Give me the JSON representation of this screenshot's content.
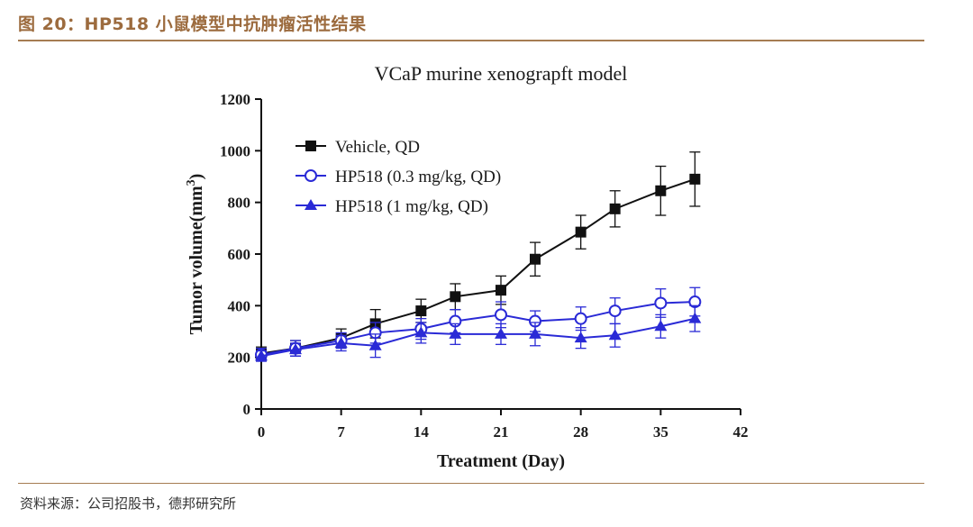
{
  "figure": {
    "title": "图 20：HP518 小鼠模型中抗肿瘤活性结果",
    "source": "资料来源：公司招股书，德邦研究所"
  },
  "colors": {
    "accent": "#9c6b3e",
    "vehicle": "#111111",
    "hp518": "#2a2ad6"
  },
  "chart_data": {
    "type": "line",
    "title": "VCaP murine xenograpft model",
    "xlabel": "Treatment (Day)",
    "ylabel": "Tumor volume(mm3)",
    "xlim": [
      0,
      42
    ],
    "ylim": [
      0,
      1200
    ],
    "xticks": [
      0,
      7,
      14,
      21,
      28,
      35,
      42
    ],
    "yticks": [
      0,
      200,
      400,
      600,
      800,
      1000,
      1200
    ],
    "legend_position": "top-left",
    "series": [
      {
        "name": "Vehicle,  QD",
        "marker": "filled-square",
        "x": [
          0,
          3,
          7,
          10,
          14,
          17,
          21,
          24,
          28,
          31,
          35,
          38
        ],
        "y": [
          215,
          235,
          275,
          330,
          380,
          435,
          460,
          580,
          685,
          775,
          845,
          890
        ],
        "err": [
          25,
          30,
          35,
          55,
          45,
          50,
          55,
          65,
          65,
          70,
          95,
          105
        ]
      },
      {
        "name": "HP518 (0.3 mg/kg, QD)",
        "marker": "open-circle",
        "x": [
          0,
          3,
          7,
          10,
          14,
          17,
          21,
          24,
          28,
          31,
          35,
          38
        ],
        "y": [
          210,
          235,
          265,
          295,
          310,
          340,
          365,
          340,
          350,
          380,
          410,
          415
        ],
        "err": [
          25,
          30,
          30,
          40,
          40,
          45,
          50,
          40,
          45,
          50,
          55,
          55
        ]
      },
      {
        "name": "HP518 (1 mg/kg, QD)",
        "marker": "filled-triangle",
        "x": [
          0,
          3,
          7,
          10,
          14,
          17,
          21,
          24,
          28,
          31,
          35,
          38
        ],
        "y": [
          205,
          230,
          255,
          245,
          295,
          290,
          290,
          290,
          275,
          285,
          320,
          350
        ],
        "err": [
          20,
          25,
          30,
          45,
          40,
          40,
          40,
          45,
          40,
          45,
          45,
          50
        ]
      }
    ]
  }
}
